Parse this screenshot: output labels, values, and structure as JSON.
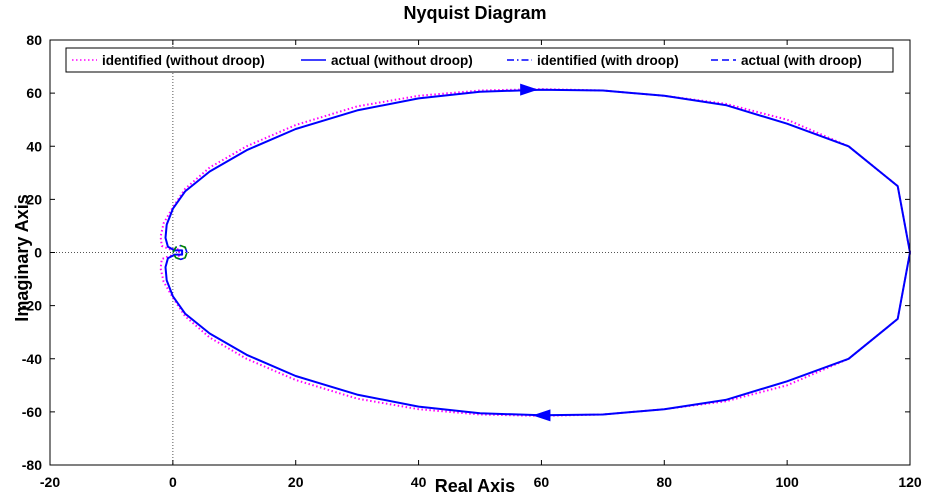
{
  "chart_data": {
    "type": "line",
    "title": "Nyquist Diagram",
    "xlabel": "Real Axis",
    "ylabel": "Imaginary Axis",
    "xlim": [
      -20,
      120
    ],
    "ylim": [
      -80,
      80
    ],
    "xticks": [
      -20,
      0,
      20,
      40,
      60,
      80,
      100,
      120
    ],
    "yticks": [
      -80,
      -60,
      -40,
      -20,
      0,
      20,
      40,
      60,
      80
    ],
    "xtick_labels": [
      "-20",
      "0",
      "20",
      "40",
      "60",
      "80",
      "100",
      "120"
    ],
    "ytick_labels": [
      "-80",
      "-60",
      "-40",
      "-20",
      "0",
      "20",
      "40",
      "60",
      "80"
    ],
    "grid": false,
    "reference_lines": {
      "x": 0,
      "y": 0
    },
    "legend_position": "top",
    "series": [
      {
        "name": "identified (without droop)",
        "color": "#ff00ff",
        "style": "dotted",
        "x": [
          120,
          118,
          110,
          100,
          90,
          80,
          70,
          60,
          50,
          40,
          30,
          20,
          12,
          6,
          2,
          0,
          -1.5,
          -2,
          -1.8,
          -0.5,
          1
        ],
        "y": [
          0,
          25,
          40,
          50,
          56,
          59,
          61,
          61.5,
          61,
          59,
          55,
          48,
          40,
          32,
          24,
          17,
          11,
          6,
          2.5,
          1.2,
          1.2
        ]
      },
      {
        "name": "actual (without droop)",
        "color": "#0000ff",
        "style": "solid",
        "x": [
          120,
          118,
          110,
          100,
          90,
          80,
          70,
          60,
          50,
          40,
          30,
          20,
          12,
          6,
          2,
          0,
          -1,
          -1.2,
          -0.8,
          0.3,
          1.5
        ],
        "y": [
          0,
          25,
          40,
          48.5,
          55.5,
          59,
          61,
          61.3,
          60.5,
          58,
          53.5,
          46.5,
          38.5,
          30.5,
          23,
          16.5,
          10.5,
          5.5,
          2.2,
          0.8,
          0.8
        ]
      },
      {
        "name": "identified (with droop)",
        "color": "#0000ff",
        "style": "dashdot",
        "x": [
          0,
          0.5,
          1.3,
          2,
          2.3,
          2,
          1.3,
          0.5,
          0
        ],
        "y": [
          0,
          2,
          2.6,
          2,
          0,
          -2,
          -2.6,
          -2,
          0
        ]
      },
      {
        "name": "actual (with droop)",
        "color": "#0000ff",
        "style": "dashed",
        "x": [
          0,
          0.5,
          1.3,
          2,
          2.3,
          2,
          1.3,
          0.5,
          0
        ],
        "y": [
          0,
          2,
          2.6,
          2,
          0,
          -2,
          -2.6,
          -2,
          0
        ]
      }
    ]
  }
}
